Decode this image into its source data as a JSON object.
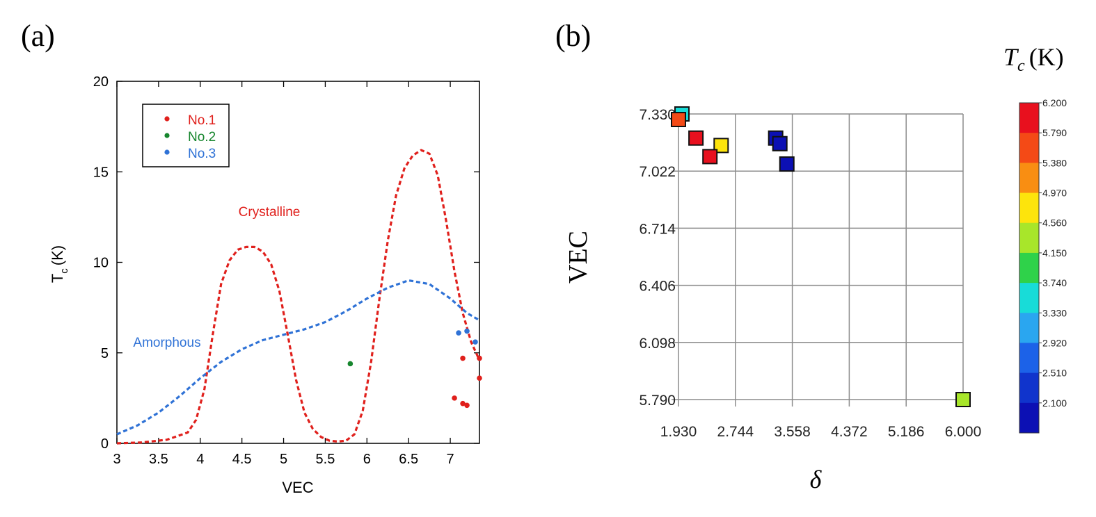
{
  "panel_a": {
    "label": "(a)",
    "chart_data": {
      "type": "line",
      "xlabel": "VEC",
      "ylabel": {
        "main": "T",
        "sub": "c",
        "unit": "(K)"
      },
      "xlim": [
        3,
        7.35
      ],
      "ylim": [
        0,
        20
      ],
      "xticks": [
        3,
        3.5,
        4,
        4.5,
        5,
        5.5,
        6,
        6.5,
        7
      ],
      "xtick_labels": [
        "3",
        "3.5",
        "4",
        "4.5",
        "5",
        "5.5",
        "6",
        "6.5",
        "7"
      ],
      "yticks": [
        0,
        5,
        10,
        15,
        20
      ],
      "ytick_labels": [
        "0",
        "5",
        "10",
        "15",
        "20"
      ],
      "grid": false,
      "legend_position": "top-left",
      "curves": [
        {
          "label": "Crystalline",
          "color": "#e0201c",
          "style": "dashed",
          "x": [
            3.0,
            3.3,
            3.6,
            3.85,
            3.95,
            4.05,
            4.15,
            4.25,
            4.35,
            4.45,
            4.55,
            4.65,
            4.75,
            4.85,
            4.95,
            5.05,
            5.15,
            5.25,
            5.35,
            5.45,
            5.55,
            5.65,
            5.75,
            5.85,
            5.95,
            6.05,
            6.15,
            6.25,
            6.35,
            6.45,
            6.55,
            6.65,
            6.75,
            6.85,
            6.95,
            7.05,
            7.15,
            7.25,
            7.35
          ],
          "y": [
            0.0,
            0.05,
            0.2,
            0.6,
            1.3,
            3.0,
            6.0,
            8.8,
            10.1,
            10.7,
            10.85,
            10.85,
            10.6,
            9.9,
            8.4,
            6.0,
            3.5,
            1.7,
            0.8,
            0.35,
            0.15,
            0.1,
            0.15,
            0.5,
            1.8,
            4.5,
            8.0,
            11.2,
            13.7,
            15.2,
            15.9,
            16.2,
            16.0,
            14.8,
            12.3,
            9.5,
            7.2,
            5.6,
            4.6
          ]
        },
        {
          "label": "Amorphous",
          "color": "#2f72d6",
          "style": "dashed",
          "x": [
            3.0,
            3.25,
            3.5,
            3.75,
            4.0,
            4.25,
            4.5,
            4.75,
            5.0,
            5.25,
            5.5,
            5.75,
            6.0,
            6.25,
            6.5,
            6.75,
            7.0,
            7.2,
            7.35
          ],
          "y": [
            0.5,
            1.0,
            1.7,
            2.6,
            3.6,
            4.5,
            5.2,
            5.7,
            6.0,
            6.3,
            6.7,
            7.3,
            8.0,
            8.6,
            9.0,
            8.8,
            8.0,
            7.2,
            6.8
          ]
        }
      ],
      "series": [
        {
          "name": "No.1",
          "color": "#e0201c",
          "points": [
            [
              7.05,
              2.5
            ],
            [
              7.15,
              4.7
            ],
            [
              7.15,
              2.2
            ],
            [
              7.2,
              2.1
            ],
            [
              7.35,
              3.6
            ],
            [
              7.35,
              4.7
            ]
          ]
        },
        {
          "name": "No.2",
          "color": "#17862e",
          "points": [
            [
              5.8,
              4.4
            ]
          ]
        },
        {
          "name": "No.3",
          "color": "#2f72d6",
          "points": [
            [
              7.1,
              6.1
            ],
            [
              7.2,
              6.2
            ],
            [
              7.3,
              5.6
            ]
          ]
        }
      ],
      "annotations": [
        {
          "text": "Crystalline",
          "color": "#e0201c"
        },
        {
          "text": "Amorphous",
          "color": "#2f72d6"
        }
      ]
    }
  },
  "panel_b": {
    "label": "(b)",
    "chart_data": {
      "type": "scatter",
      "xlabel": "δ",
      "ylabel": "VEC",
      "xlim": [
        1.93,
        6.0
      ],
      "ylim": [
        5.79,
        7.33
      ],
      "xticks": [
        1.93,
        2.744,
        3.558,
        4.372,
        5.186,
        6.0
      ],
      "xtick_labels": [
        "1.930",
        "2.744",
        "3.558",
        "4.372",
        "5.186",
        "6.000"
      ],
      "yticks": [
        5.79,
        6.098,
        6.406,
        6.714,
        7.022,
        7.33
      ],
      "ytick_labels": [
        "5.790",
        "6.098",
        "6.406",
        "6.714",
        "7.022",
        "7.330"
      ],
      "grid": true,
      "points": [
        {
          "x": 1.98,
          "y": 7.33,
          "tc": 3.6
        },
        {
          "x": 1.93,
          "y": 7.3,
          "tc": 5.6
        },
        {
          "x": 2.18,
          "y": 7.2,
          "tc": 6.1
        },
        {
          "x": 2.54,
          "y": 7.16,
          "tc": 4.9
        },
        {
          "x": 2.38,
          "y": 7.1,
          "tc": 6.1
        },
        {
          "x": 3.32,
          "y": 7.2,
          "tc": 2.3
        },
        {
          "x": 3.38,
          "y": 7.17,
          "tc": 2.4
        },
        {
          "x": 3.48,
          "y": 7.06,
          "tc": 2.2
        },
        {
          "x": 6.0,
          "y": 5.79,
          "tc": 4.4
        }
      ],
      "colorbar": {
        "title_main": "T",
        "title_sub": "c",
        "title_unit": "(K)",
        "min": 2.1,
        "max": 6.2,
        "tick_labels": [
          "6.200",
          "5.790",
          "5.380",
          "4.970",
          "4.560",
          "4.150",
          "3.740",
          "3.330",
          "2.920",
          "2.510",
          "2.100"
        ],
        "colors": [
          "#e8101e",
          "#f44a16",
          "#f98e12",
          "#fde40c",
          "#a8e62a",
          "#2fd24a",
          "#18dcd8",
          "#2aa6f0",
          "#1c62e8",
          "#1034cc",
          "#0c10b4"
        ]
      }
    }
  }
}
